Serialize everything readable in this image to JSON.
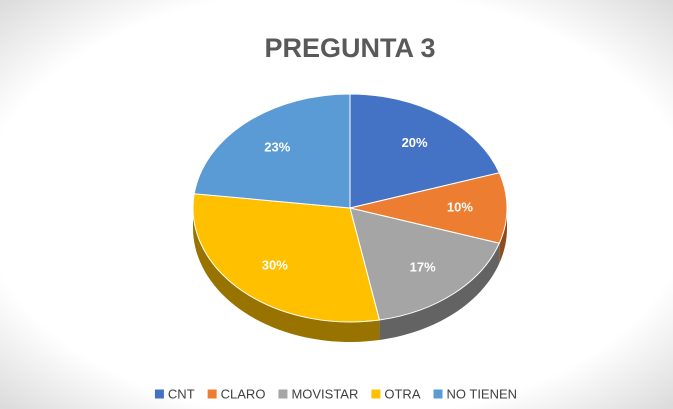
{
  "chart_data": {
    "type": "pie",
    "title": "PREGUNTA 3",
    "categories": [
      "CNT",
      "CLARO",
      "MOVISTAR",
      "OTRA",
      "NO TIENEN"
    ],
    "values": [
      20,
      10,
      17,
      30,
      23
    ],
    "value_labels": [
      "20%",
      "10%",
      "17%",
      "30%",
      "23%"
    ],
    "colors": [
      "#4472c4",
      "#ed7d31",
      "#a5a5a5",
      "#ffc000",
      "#5b9bd5"
    ],
    "legend": "bottom"
  }
}
